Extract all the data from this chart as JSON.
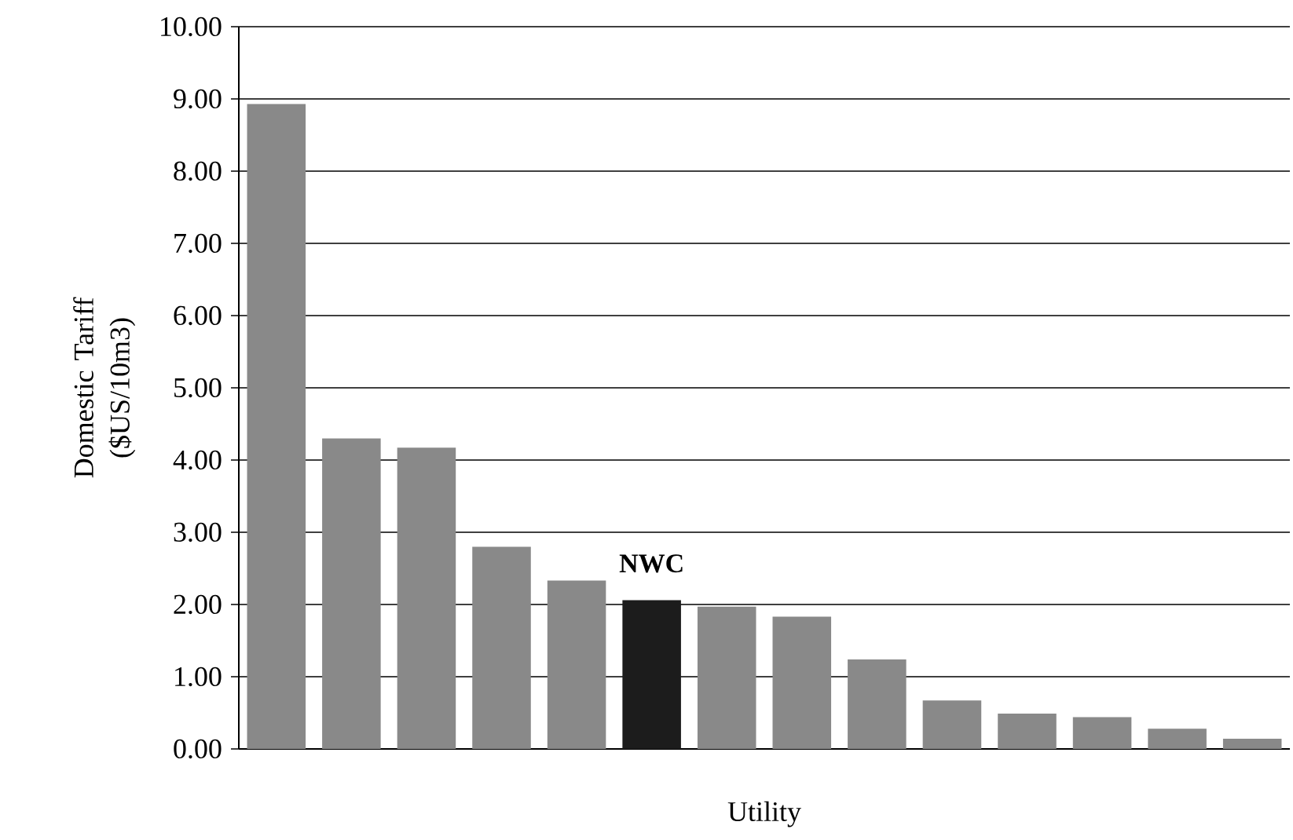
{
  "chart_data": {
    "type": "bar",
    "xlabel": "Utility",
    "ylabel": "Domestic Tariff ($US/10m3)",
    "categories": [
      null,
      null,
      null,
      null,
      null,
      null,
      null,
      null,
      null,
      null,
      null,
      null,
      null,
      null
    ],
    "values": [
      8.93,
      4.3,
      4.17,
      2.8,
      2.33,
      2.06,
      1.97,
      1.83,
      1.24,
      0.67,
      0.49,
      0.44,
      0.28,
      0.14
    ],
    "colors": [
      "#898989",
      "#898989",
      "#898989",
      "#898989",
      "#898989",
      "#1c1c1c",
      "#898989",
      "#898989",
      "#898989",
      "#898989",
      "#898989",
      "#898989",
      "#898989",
      "#898989"
    ],
    "ylim": [
      0,
      10
    ],
    "yticks": [
      {
        "value": 0,
        "label": "0.00"
      },
      {
        "value": 1,
        "label": "1.00"
      },
      {
        "value": 2,
        "label": "2.00"
      },
      {
        "value": 3,
        "label": "3.00"
      },
      {
        "value": 4,
        "label": "4.00"
      },
      {
        "value": 5,
        "label": "5.00"
      },
      {
        "value": 6,
        "label": "6.00"
      },
      {
        "value": 7,
        "label": "7.00"
      },
      {
        "value": 8,
        "label": "8.00"
      },
      {
        "value": 9,
        "label": "9.00"
      },
      {
        "value": 10,
        "label": "10.00"
      }
    ],
    "grid": "y",
    "annotations": [
      {
        "text": "NWC",
        "y": 2.06
      }
    ]
  }
}
